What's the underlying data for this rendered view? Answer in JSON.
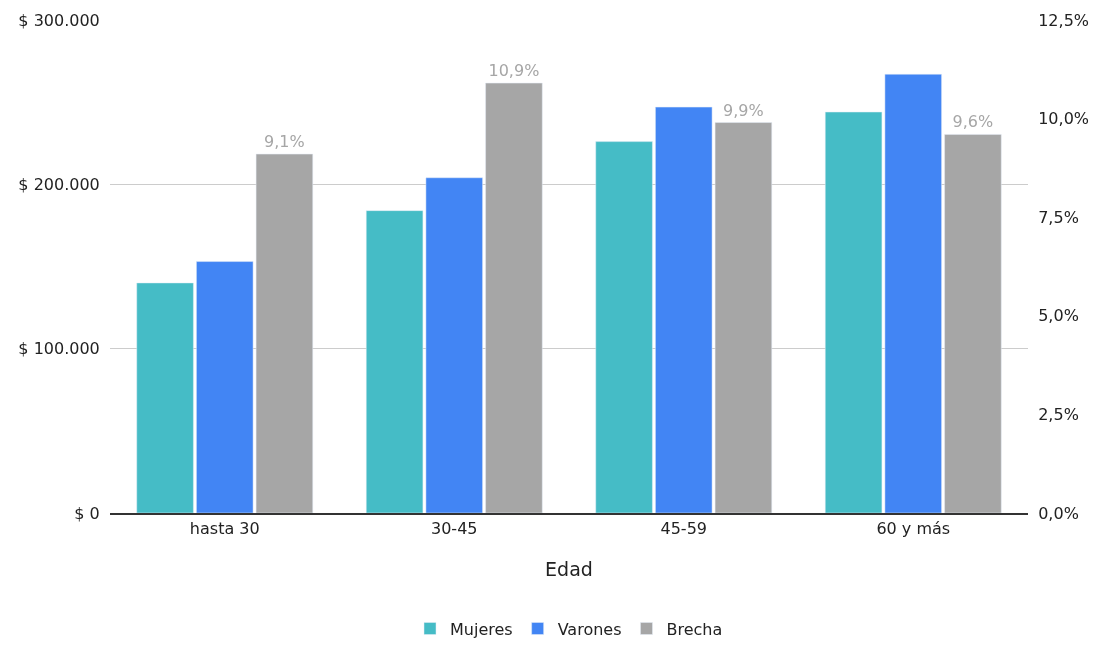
{
  "chart_data": {
    "type": "bar",
    "xlabel": "Edad",
    "categories": [
      "hasta 30",
      "30-45",
      "45-59",
      "60 y más"
    ],
    "series": [
      {
        "name": "Mujeres",
        "color": "#45bcc6",
        "values": [
          140000,
          184000,
          226000,
          244000
        ]
      },
      {
        "name": "Varones",
        "color": "#4285f4",
        "values": [
          153000,
          204000,
          247000,
          267000
        ]
      },
      {
        "name": "Brecha",
        "color": "#a6a6a6",
        "axis": "y2",
        "values": [
          9.1,
          10.9,
          9.9,
          9.6
        ],
        "value_labels": [
          "9,1%",
          "10,9%",
          "9,9%",
          "9,6%"
        ]
      }
    ],
    "ylim": [
      0,
      300000
    ],
    "yticks": [
      {
        "value": 0,
        "label": "$ 0"
      },
      {
        "value": 100000,
        "label": "$ 100.000"
      },
      {
        "value": 200000,
        "label": "$ 200.000"
      },
      {
        "value": 300000,
        "label": "$ 300.000"
      }
    ],
    "y2lim": [
      0,
      12.5
    ],
    "y2ticks": [
      {
        "value": 0,
        "label": "0,0%"
      },
      {
        "value": 2.5,
        "label": "2,5%"
      },
      {
        "value": 5,
        "label": "5,0%"
      },
      {
        "value": 7.5,
        "label": "7,5%"
      },
      {
        "value": 10,
        "label": "10,0%"
      },
      {
        "value": 12.5,
        "label": "12,5%"
      }
    ],
    "grid": "y",
    "legend": "bottom"
  }
}
